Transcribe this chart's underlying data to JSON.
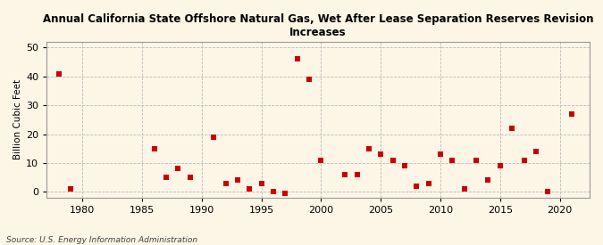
{
  "title": "Annual California State Offshore Natural Gas, Wet After Lease Separation Reserves Revision\nIncreases",
  "ylabel": "Billion Cubic Feet",
  "source": "Source: U.S. Energy Information Administration",
  "background_color": "#fdf5e6",
  "marker_color": "#cc0000",
  "years": [
    1978,
    1979,
    1986,
    1987,
    1988,
    1989,
    1991,
    1992,
    1993,
    1994,
    1995,
    1996,
    1997,
    1998,
    1999,
    2000,
    2002,
    2003,
    2004,
    2005,
    2006,
    2007,
    2008,
    2009,
    2010,
    2011,
    2012,
    2013,
    2014,
    2015,
    2016,
    2017,
    2018,
    2019,
    2021
  ],
  "values": [
    41,
    1,
    15,
    5,
    8,
    5,
    19,
    3,
    4,
    1,
    3,
    0,
    -0.5,
    46,
    39,
    11,
    6,
    6,
    15,
    13,
    11,
    9,
    2,
    3,
    13,
    11,
    1,
    11,
    4,
    9,
    22,
    11,
    14,
    0,
    27
  ],
  "xlim": [
    1977,
    2022.5
  ],
  "ylim": [
    -2,
    52
  ],
  "xticks": [
    1980,
    1985,
    1990,
    1995,
    2000,
    2005,
    2010,
    2015,
    2020
  ],
  "yticks": [
    0,
    10,
    20,
    30,
    40,
    50
  ],
  "grid_color": "#bbbbbb",
  "marker_size": 18
}
